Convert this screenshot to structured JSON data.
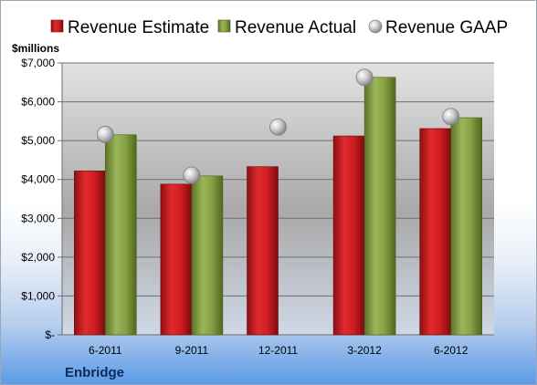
{
  "chart_data": {
    "type": "bar",
    "company": "Enbridge",
    "ylabel": "$millions",
    "categories": [
      "6-2011",
      "9-2011",
      "12-2011",
      "3-2012",
      "6-2012"
    ],
    "ylim": [
      0,
      7000
    ],
    "yticks": [
      0,
      1000,
      2000,
      3000,
      4000,
      5000,
      6000,
      7000
    ],
    "ytick_labels": [
      "$-",
      "$1,000",
      "$2,000",
      "$3,000",
      "$4,000",
      "$5,000",
      "$6,000",
      "$7,000"
    ],
    "series": [
      {
        "name": "Revenue Estimate",
        "type": "bar",
        "color": "#c8191e",
        "values": [
          4220,
          3880,
          4330,
          5120,
          5310
        ]
      },
      {
        "name": "Revenue Actual",
        "type": "bar",
        "color": "#7f9a3a",
        "values": [
          5150,
          4090,
          null,
          6630,
          5590
        ]
      },
      {
        "name": "Revenue GAAP",
        "type": "marker",
        "color": "#c0c0c0",
        "values": [
          5160,
          4110,
          5350,
          6630,
          5620
        ]
      }
    ],
    "legend_position": "top",
    "grid": true
  }
}
